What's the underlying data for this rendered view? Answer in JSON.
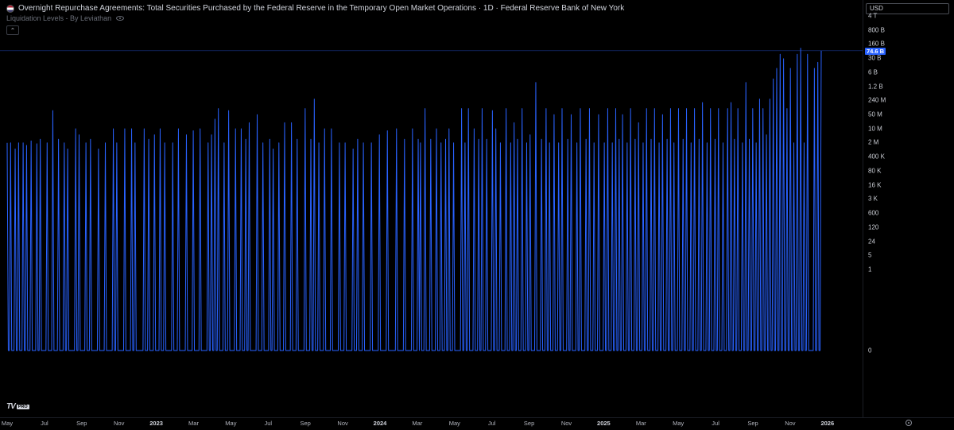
{
  "legend": {
    "title": "Overnight Repurchase Agreements: Total Securities Purchased by the Federal Reserve in the Temporary Open Market Operations · 1D · Federal Reserve Bank of New York",
    "indicator": "Liquidation Levels - By Leviathan",
    "collapse_glyph": "⌃"
  },
  "currency": "USD",
  "brand": {
    "mark": "TV",
    "badge": "PRO"
  },
  "colors": {
    "series": "#2962ff",
    "background": "#000000"
  },
  "icons": [
    "flag-icon",
    "eye-icon",
    "collapse-icon",
    "tradingview-logo",
    "settings-icon"
  ],
  "price_axis": {
    "ticks": [
      "4 T",
      "800 B",
      "160 B",
      "30 B",
      "6 B",
      "1.2 B",
      "240 M",
      "50 M",
      "10 M",
      "2 M",
      "400 K",
      "80 K",
      "16 K",
      "3 K",
      "600",
      "120",
      "24",
      "5",
      "1",
      "0"
    ],
    "last_value": "74.6 B"
  },
  "time_axis": {
    "ticks": [
      {
        "label": "May",
        "year": false
      },
      {
        "label": "Jul",
        "year": false
      },
      {
        "label": "Sep",
        "year": false
      },
      {
        "label": "Nov",
        "year": false
      },
      {
        "label": "2023",
        "year": true
      },
      {
        "label": "Mar",
        "year": false
      },
      {
        "label": "May",
        "year": false
      },
      {
        "label": "Jul",
        "year": false
      },
      {
        "label": "Sep",
        "year": false
      },
      {
        "label": "Nov",
        "year": false
      },
      {
        "label": "2024",
        "year": true
      },
      {
        "label": "Mar",
        "year": false
      },
      {
        "label": "May",
        "year": false
      },
      {
        "label": "Jul",
        "year": false
      },
      {
        "label": "Sep",
        "year": false
      },
      {
        "label": "Nov",
        "year": false
      },
      {
        "label": "2025",
        "year": true
      },
      {
        "label": "Mar",
        "year": false
      },
      {
        "label": "May",
        "year": false
      },
      {
        "label": "Jul",
        "year": false
      },
      {
        "label": "Sep",
        "year": false
      },
      {
        "label": "Nov",
        "year": false
      },
      {
        "label": "2026",
        "year": true
      }
    ]
  },
  "chart_data": {
    "type": "line",
    "title": "Overnight Repurchase Agreements: Total Securities Purchased by the Federal Reserve in the Temporary Open Market Operations",
    "scale": "log",
    "grid": false,
    "y_ticks": [
      "4 T",
      "800 B",
      "160 B",
      "30 B",
      "6 B",
      "1.2 B",
      "240 M",
      "50 M",
      "10 M",
      "2 M",
      "400 K",
      "80 K",
      "16 K",
      "3 K",
      "600",
      "120",
      "24",
      "5",
      "1",
      "0"
    ],
    "last_value": "74.6 B",
    "period_start": "2022-05",
    "period_end": "2026-01",
    "series": [
      {
        "values": [
          [
            2000000.0,
            0,
            0,
            2000000.0,
            0,
            0,
            0,
            1000000.0,
            0,
            0,
            2000000.0,
            0,
            0,
            0,
            2000000.0,
            0,
            0,
            1500000.0,
            0,
            0,
            0,
            2500000.0,
            0,
            0,
            0,
            0,
            1800000.0,
            0,
            0,
            3000000.0,
            0,
            0,
            0,
            0,
            0,
            2000000.0,
            0,
            0,
            0,
            0,
            80000000.0,
            0,
            0,
            0,
            0,
            3000000.0,
            0,
            0,
            0,
            0,
            2000000.0,
            0,
            0,
            1000000.0,
            0,
            0,
            0,
            0,
            0,
            0,
            10000000.0,
            0,
            0,
            5000000.0,
            0,
            0,
            0,
            0,
            0,
            2000000.0,
            0,
            0,
            0,
            3000000.0,
            0,
            0,
            0,
            0,
            0,
            0,
            1000000.0,
            0,
            0,
            0,
            0,
            0,
            2000000.0,
            0,
            0,
            0,
            0,
            0,
            0,
            10000000.0,
            0,
            0,
            2000000.0,
            0,
            0,
            0,
            0,
            0,
            0,
            10000000.0,
            0,
            0,
            0,
            0,
            0,
            10000000.0,
            0,
            0,
            2000000.0,
            0,
            0,
            0,
            0,
            0,
            0,
            0,
            10000000.0,
            0,
            0,
            0,
            3000000.0,
            0,
            0,
            0,
            0,
            5000000.0,
            0,
            0,
            0,
            0,
            10000000.0,
            0,
            0,
            0,
            2000000.0,
            0,
            0,
            0,
            0,
            0,
            0,
            2000000.0,
            0,
            0,
            0,
            0,
            10000000.0,
            0,
            0,
            0,
            0,
            0,
            0,
            5000000.0,
            0,
            0,
            0,
            0,
            0,
            8000000.0,
            0,
            0,
            0,
            0,
            0,
            10000000.0,
            0,
            0,
            0,
            0,
            0,
            0,
            2000000.0
          ],
          [
            0,
            0,
            5000000.0,
            0,
            0,
            30000000.0,
            0,
            0,
            100000000.0,
            0,
            0,
            0,
            0,
            2000000.0,
            0,
            0,
            0,
            80000000.0,
            0,
            0,
            0,
            0,
            0,
            10000000.0,
            0,
            0,
            0,
            0,
            10000000.0,
            0,
            0,
            0,
            3000000.0,
            0,
            0,
            20000000.0,
            0,
            0,
            0,
            0,
            0,
            0,
            50000000.0,
            0,
            0,
            0,
            0,
            2000000.0,
            0,
            0,
            0,
            0,
            0,
            3000000.0,
            0,
            0,
            1000000.0,
            0,
            0,
            0,
            0,
            2000000.0,
            0,
            0,
            0,
            0,
            20000000.0,
            0,
            0,
            0,
            0,
            0,
            20000000.0,
            0,
            0,
            0,
            0,
            3000000.0,
            0,
            0,
            0,
            0,
            0,
            0,
            100000000.0,
            0,
            0,
            0,
            0,
            3000000.0,
            0,
            0,
            300000000.0,
            0,
            0,
            0,
            2000000.0,
            0,
            0,
            0,
            0,
            10000000.0,
            0,
            0,
            0,
            0,
            0,
            10000000.0,
            0,
            0,
            0,
            0,
            0,
            0,
            2000000.0,
            0,
            0,
            0,
            0,
            2000000.0,
            0,
            0,
            0,
            0,
            0,
            0,
            1000000.0,
            0,
            0,
            0,
            3000000.0,
            0,
            0,
            0,
            0,
            2000000.0,
            0,
            0,
            0,
            0,
            0,
            0,
            2000000.0,
            0,
            0,
            0,
            0,
            0,
            0,
            5000000.0,
            0,
            0,
            0,
            0,
            0,
            0,
            8000000.0,
            0,
            0,
            0,
            0,
            0,
            0,
            0,
            10000000.0,
            0,
            0,
            0,
            0,
            0,
            0,
            3000000.0,
            0,
            0,
            0,
            0,
            0,
            0,
            10000000.0
          ],
          [
            0,
            0,
            0,
            0,
            3000000.0,
            0,
            2000000.0,
            0,
            0,
            0,
            100000000.0,
            0,
            0,
            0,
            0,
            3000000.0,
            0,
            0,
            0,
            0,
            10000000.0,
            0,
            0,
            0,
            2000000.0,
            0,
            0,
            0,
            3000000.0,
            0,
            0,
            10000000.0,
            0,
            0,
            0,
            2000000.0,
            0,
            0,
            0,
            0,
            0,
            0,
            100000000.0,
            0,
            0,
            2000000.0,
            0,
            0,
            100000000.0,
            0,
            0,
            0,
            0,
            10000000.0,
            0,
            0,
            0,
            3000000.0,
            0,
            0,
            100000000.0,
            0,
            0,
            0,
            3000000.0,
            0,
            0,
            0,
            0,
            80000000.0,
            0,
            0,
            10000000.0,
            0,
            0,
            0,
            2000000.0,
            0,
            0,
            0,
            0,
            100000000.0,
            0,
            0,
            0,
            2000000.0,
            0,
            0,
            20000000.0,
            0,
            0,
            3000000.0,
            0,
            0,
            0,
            100000000.0,
            0,
            0,
            0,
            2000000.0,
            0,
            0,
            5000000.0,
            0,
            0,
            0,
            0,
            2000000000.0,
            0,
            0,
            0,
            0,
            3000000.0,
            0,
            0,
            0,
            100000000.0,
            0,
            0,
            2000000.0,
            0,
            0,
            0,
            50000000.0,
            0,
            0,
            0,
            2000000.0,
            0,
            0,
            100000000.0,
            0,
            0,
            0,
            0,
            3000000.0,
            0,
            0,
            50000000.0,
            0,
            0,
            0,
            0,
            2000000.0,
            0,
            0,
            100000000.0,
            0,
            0,
            0,
            0,
            3000000.0,
            0,
            0,
            100000000.0,
            0,
            0,
            0,
            2000000.0,
            0,
            0,
            0,
            50000000.0,
            0,
            0,
            0,
            0,
            2000000.0,
            0,
            0,
            100000000.0,
            0,
            0,
            0,
            2000000.0
          ],
          [
            0,
            0,
            100000000.0,
            0,
            0,
            3000000.0,
            0,
            0,
            50000000.0,
            0,
            0,
            0,
            2000000.0,
            0,
            0,
            100000000.0,
            0,
            0,
            0,
            3000000.0,
            0,
            0,
            20000000.0,
            0,
            0,
            0,
            2000000.0,
            0,
            0,
            100000000.0,
            0,
            0,
            0,
            3000000.0,
            0,
            0,
            100000000.0,
            0,
            0,
            0,
            2000000.0,
            0,
            0,
            50000000.0,
            0,
            0,
            0,
            3000000.0,
            0,
            0,
            100000000.0,
            0,
            0,
            2000000.0,
            0,
            0,
            0,
            100000000.0,
            0,
            0,
            0,
            3000000.0,
            0,
            0,
            100000000.0,
            0,
            0,
            0,
            2000000.0,
            0,
            0,
            100000000.0,
            0,
            0,
            0,
            3000000.0,
            0,
            0,
            200000000.0,
            0,
            0,
            0,
            2000000.0,
            0,
            0,
            100000000.0,
            0,
            0,
            0,
            3000000.0,
            0,
            0,
            100000000.0,
            0,
            0,
            0,
            2000000.0,
            0,
            0,
            0,
            100000000.0,
            0,
            0,
            200000000.0,
            0,
            0,
            3000000.0,
            0,
            0,
            100000000.0,
            0,
            0,
            0,
            2000000.0,
            0,
            0,
            2000000000.0,
            0,
            0,
            3000000.0,
            0,
            0,
            100000000.0,
            0,
            0,
            2000000.0,
            0,
            0,
            300000000.0,
            0,
            0,
            100000000.0,
            0,
            0,
            5000000.0,
            0,
            0,
            300000000.0,
            0,
            0,
            3000000000.0,
            0,
            0,
            10000000000.0,
            0,
            0,
            50000000000.0,
            0,
            0,
            30000000000.0,
            0,
            0,
            100000000.0,
            0,
            0,
            10000000000.0,
            0,
            0,
            2000000.0,
            0,
            0,
            50000000000.0,
            0,
            0,
            100000000000.0,
            0,
            0,
            2000000.0,
            0,
            0,
            50000000000.0,
            0,
            0,
            0,
            0,
            0,
            10000000000.0,
            0,
            0,
            20000000000.0,
            0,
            0,
            74600000000.0
          ]
        ]
      }
    ]
  }
}
